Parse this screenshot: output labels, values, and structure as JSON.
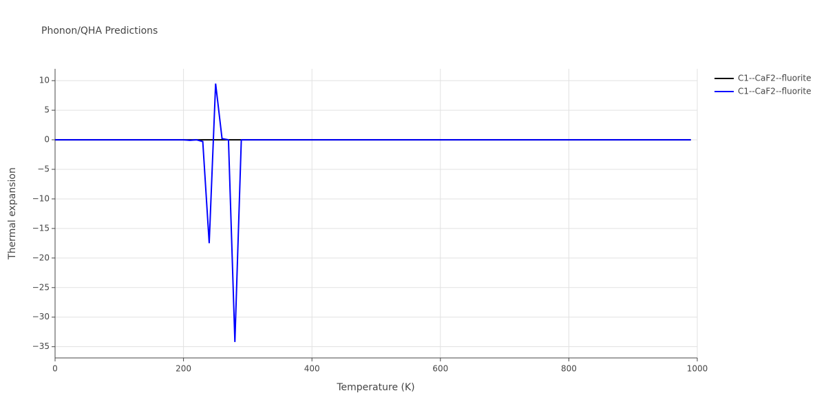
{
  "chart_data": {
    "type": "line",
    "title": "Phonon/QHA Predictions",
    "xlabel": "Temperature (K)",
    "ylabel": "Thermal expansion",
    "x": [
      0,
      10,
      20,
      30,
      40,
      50,
      60,
      70,
      80,
      90,
      100,
      110,
      120,
      130,
      140,
      150,
      160,
      170,
      180,
      190,
      200,
      210,
      220,
      230,
      240,
      250,
      260,
      270,
      280,
      290,
      300,
      310,
      320,
      330,
      340,
      350,
      360,
      370,
      380,
      390,
      400,
      410,
      420,
      430,
      440,
      450,
      460,
      470,
      480,
      490,
      500,
      510,
      520,
      530,
      540,
      550,
      560,
      570,
      580,
      590,
      600,
      610,
      620,
      630,
      640,
      650,
      660,
      670,
      680,
      690,
      700,
      710,
      720,
      730,
      740,
      750,
      760,
      770,
      780,
      790,
      800,
      810,
      820,
      830,
      840,
      850,
      860,
      870,
      880,
      890,
      900,
      910,
      920,
      930,
      940,
      950,
      960,
      970,
      980,
      990
    ],
    "series": [
      {
        "name": "C1--CaF2--fluorite",
        "color": "#000000",
        "values": [
          0,
          0,
          0,
          0,
          0,
          0,
          0,
          0,
          0,
          0,
          0,
          0,
          0,
          0,
          0,
          0,
          0,
          0,
          0,
          0,
          0,
          0,
          0,
          0,
          0,
          0,
          0,
          0,
          0,
          0,
          0,
          0,
          0,
          0,
          0,
          0,
          0,
          0,
          0,
          0,
          0,
          0,
          0,
          0,
          0,
          0,
          0,
          0,
          0,
          0,
          0,
          0,
          0,
          0,
          0,
          0,
          0,
          0,
          0,
          0,
          0,
          0,
          0,
          0,
          0,
          0,
          0,
          0,
          0,
          0,
          0,
          0,
          0,
          0,
          0,
          0,
          0,
          0,
          0,
          0,
          0,
          0,
          0,
          0,
          0,
          0,
          0,
          0,
          0,
          0,
          0,
          0,
          0,
          0,
          0,
          0,
          0,
          0,
          0,
          0
        ]
      },
      {
        "name": "C1--CaF2--fluorite",
        "color": "#0000ff",
        "values": [
          0,
          0,
          0,
          0,
          0,
          0,
          0,
          0,
          0,
          0,
          0,
          0,
          0,
          0,
          0,
          0,
          0,
          0,
          0,
          0,
          0,
          -0.1,
          0,
          -0.3,
          -17.5,
          9.5,
          0.2,
          0,
          -34.2,
          0,
          0,
          0,
          0,
          0,
          0,
          0,
          0,
          0,
          0,
          0,
          0,
          0,
          0,
          0,
          0,
          0,
          0,
          0,
          0,
          0,
          0,
          0,
          0,
          0,
          0,
          0,
          0,
          0,
          0,
          0,
          0,
          0,
          0,
          0,
          0,
          0,
          0,
          0,
          0,
          0,
          0,
          0,
          0,
          0,
          0,
          0,
          0,
          0,
          0,
          0,
          0,
          0,
          0,
          0,
          0,
          0,
          0,
          0,
          0,
          0,
          0,
          0,
          0,
          0,
          0,
          0,
          0,
          0,
          0,
          0
        ]
      }
    ],
    "xlim": [
      0,
      1000
    ],
    "xticks": [
      0,
      200,
      400,
      600,
      800,
      1000
    ],
    "ylim": [
      -36.9,
      12
    ],
    "yticks": [
      {
        "value": -35,
        "label": "−35"
      },
      {
        "value": -30,
        "label": "−30"
      },
      {
        "value": -25,
        "label": "−25"
      },
      {
        "value": -20,
        "label": "−20"
      },
      {
        "value": -15,
        "label": "−15"
      },
      {
        "value": -10,
        "label": "−10"
      },
      {
        "value": -5,
        "label": "−5"
      },
      0,
      5,
      10
    ],
    "grid": true,
    "legend": "top-right"
  }
}
